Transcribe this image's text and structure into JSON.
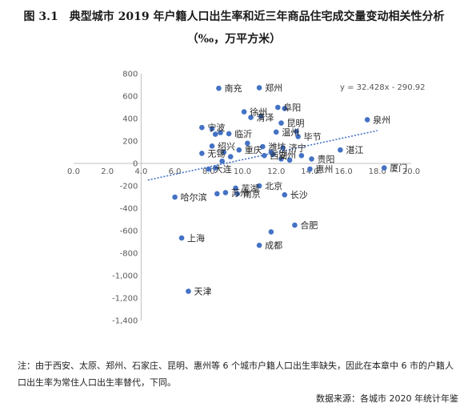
{
  "figure": {
    "title_line1": "图 3.1　典型城市 2019 年户籍人口出生率和近三年商品住宅成交量变动相关性分析",
    "title_line2": "（‰，万平方米）"
  },
  "note": "注：由于西安、太原、郑州、石家庄、昆明、惠州等 6 个城市户籍人口出生率缺失，因此在本章中 6 市的户籍人口出生率为常住人口出生率替代，下同。",
  "source": "数据来源：各城市 2020 年统计年鉴",
  "colors": {
    "point": "#4472c4",
    "trend": "#4472c4",
    "axis": "#bfbfbf"
  },
  "chart_data": {
    "type": "scatter",
    "title": "",
    "xlabel": "",
    "ylabel": "",
    "xlim": [
      0,
      20
    ],
    "ylim": [
      -1400,
      800
    ],
    "x_ticks": [
      "0.0",
      "2.0",
      "4.0",
      "6.0",
      "8.0",
      "10.0",
      "12.0",
      "14.0",
      "16.0",
      "18.0",
      "20.0"
    ],
    "y_ticks": [
      "800",
      "600",
      "400",
      "200",
      "0",
      "-200",
      "-400",
      "-600",
      "-800",
      "-1,000",
      "-1,200",
      "-1,400"
    ],
    "trendline": {
      "equation": "y = 32.428x - 290.92",
      "slope": 32.428,
      "intercept": -290.92,
      "x_range": [
        4.4,
        18.0
      ]
    },
    "points": [
      {
        "label": "南充",
        "x": 8.6,
        "y": 670
      },
      {
        "label": "郑州",
        "x": 11.0,
        "y": 675
      },
      {
        "label": "徐州",
        "x": 10.1,
        "y": 460
      },
      {
        "label": "阜阳",
        "x": 12.1,
        "y": 500
      },
      {
        "label": "",
        "x": 12.5,
        "y": 490
      },
      {
        "label": "泉州",
        "x": 17.4,
        "y": 390
      },
      {
        "label": "清泽",
        "x": 10.5,
        "y": 410
      },
      {
        "label": "",
        "x": 11.1,
        "y": 420
      },
      {
        "label": "昆明",
        "x": 12.3,
        "y": 360
      },
      {
        "label": "温州",
        "x": 12.0,
        "y": 280
      },
      {
        "label": "",
        "x": 13.2,
        "y": 285
      },
      {
        "label": "毕节",
        "x": 13.3,
        "y": 240
      },
      {
        "label": "宁波",
        "x": 7.6,
        "y": 320
      },
      {
        "label": "",
        "x": 8.2,
        "y": 310
      },
      {
        "label": "",
        "x": 8.4,
        "y": 260
      },
      {
        "label": "",
        "x": 8.7,
        "y": 275
      },
      {
        "label": "临沂",
        "x": 9.2,
        "y": 265
      },
      {
        "label": "",
        "x": 10.3,
        "y": 180
      },
      {
        "label": "潍坊",
        "x": 11.2,
        "y": 150
      },
      {
        "label": "济宁",
        "x": 12.4,
        "y": 140
      },
      {
        "label": "",
        "x": 11.7,
        "y": 100
      },
      {
        "label": "湖州",
        "x": 11.8,
        "y": 80
      },
      {
        "label": "湛江",
        "x": 15.8,
        "y": 120
      },
      {
        "label": "",
        "x": 13.5,
        "y": 70
      },
      {
        "label": "绍兴",
        "x": 8.2,
        "y": 155
      },
      {
        "label": "无锡",
        "x": 7.6,
        "y": 90
      },
      {
        "label": "",
        "x": 8.9,
        "y": 100
      },
      {
        "label": "",
        "x": 9.3,
        "y": 60
      },
      {
        "label": "重庆",
        "x": 9.8,
        "y": 120
      },
      {
        "label": "西安",
        "x": 11.3,
        "y": 70
      },
      {
        "label": "贵阳",
        "x": 14.1,
        "y": 40
      },
      {
        "label": "",
        "x": 12.8,
        "y": 30
      },
      {
        "label": "惠州",
        "x": 14.0,
        "y": -50
      },
      {
        "label": "",
        "x": 12.3,
        "y": 40
      },
      {
        "label": "大连",
        "x": 8.0,
        "y": -50
      },
      {
        "label": "",
        "x": 8.4,
        "y": -40
      },
      {
        "label": "",
        "x": 8.8,
        "y": 20
      },
      {
        "label": "厦门",
        "x": 18.4,
        "y": -40
      },
      {
        "label": "芜湖",
        "x": 9.6,
        "y": -220
      },
      {
        "label": "北京",
        "x": 11.0,
        "y": -200
      },
      {
        "label": "苏州",
        "x": 9.0,
        "y": -260
      },
      {
        "label": "南京",
        "x": 9.7,
        "y": -270
      },
      {
        "label": "长沙",
        "x": 12.5,
        "y": -280
      },
      {
        "label": "哈尔滨",
        "x": 6.0,
        "y": -300
      },
      {
        "label": "",
        "x": 8.5,
        "y": -270
      },
      {
        "label": "合肥",
        "x": 13.1,
        "y": -550
      },
      {
        "label": "",
        "x": 11.7,
        "y": -610
      },
      {
        "label": "上海",
        "x": 6.4,
        "y": -665
      },
      {
        "label": "成都",
        "x": 11.0,
        "y": -730
      },
      {
        "label": "天津",
        "x": 6.8,
        "y": -1140
      }
    ]
  }
}
